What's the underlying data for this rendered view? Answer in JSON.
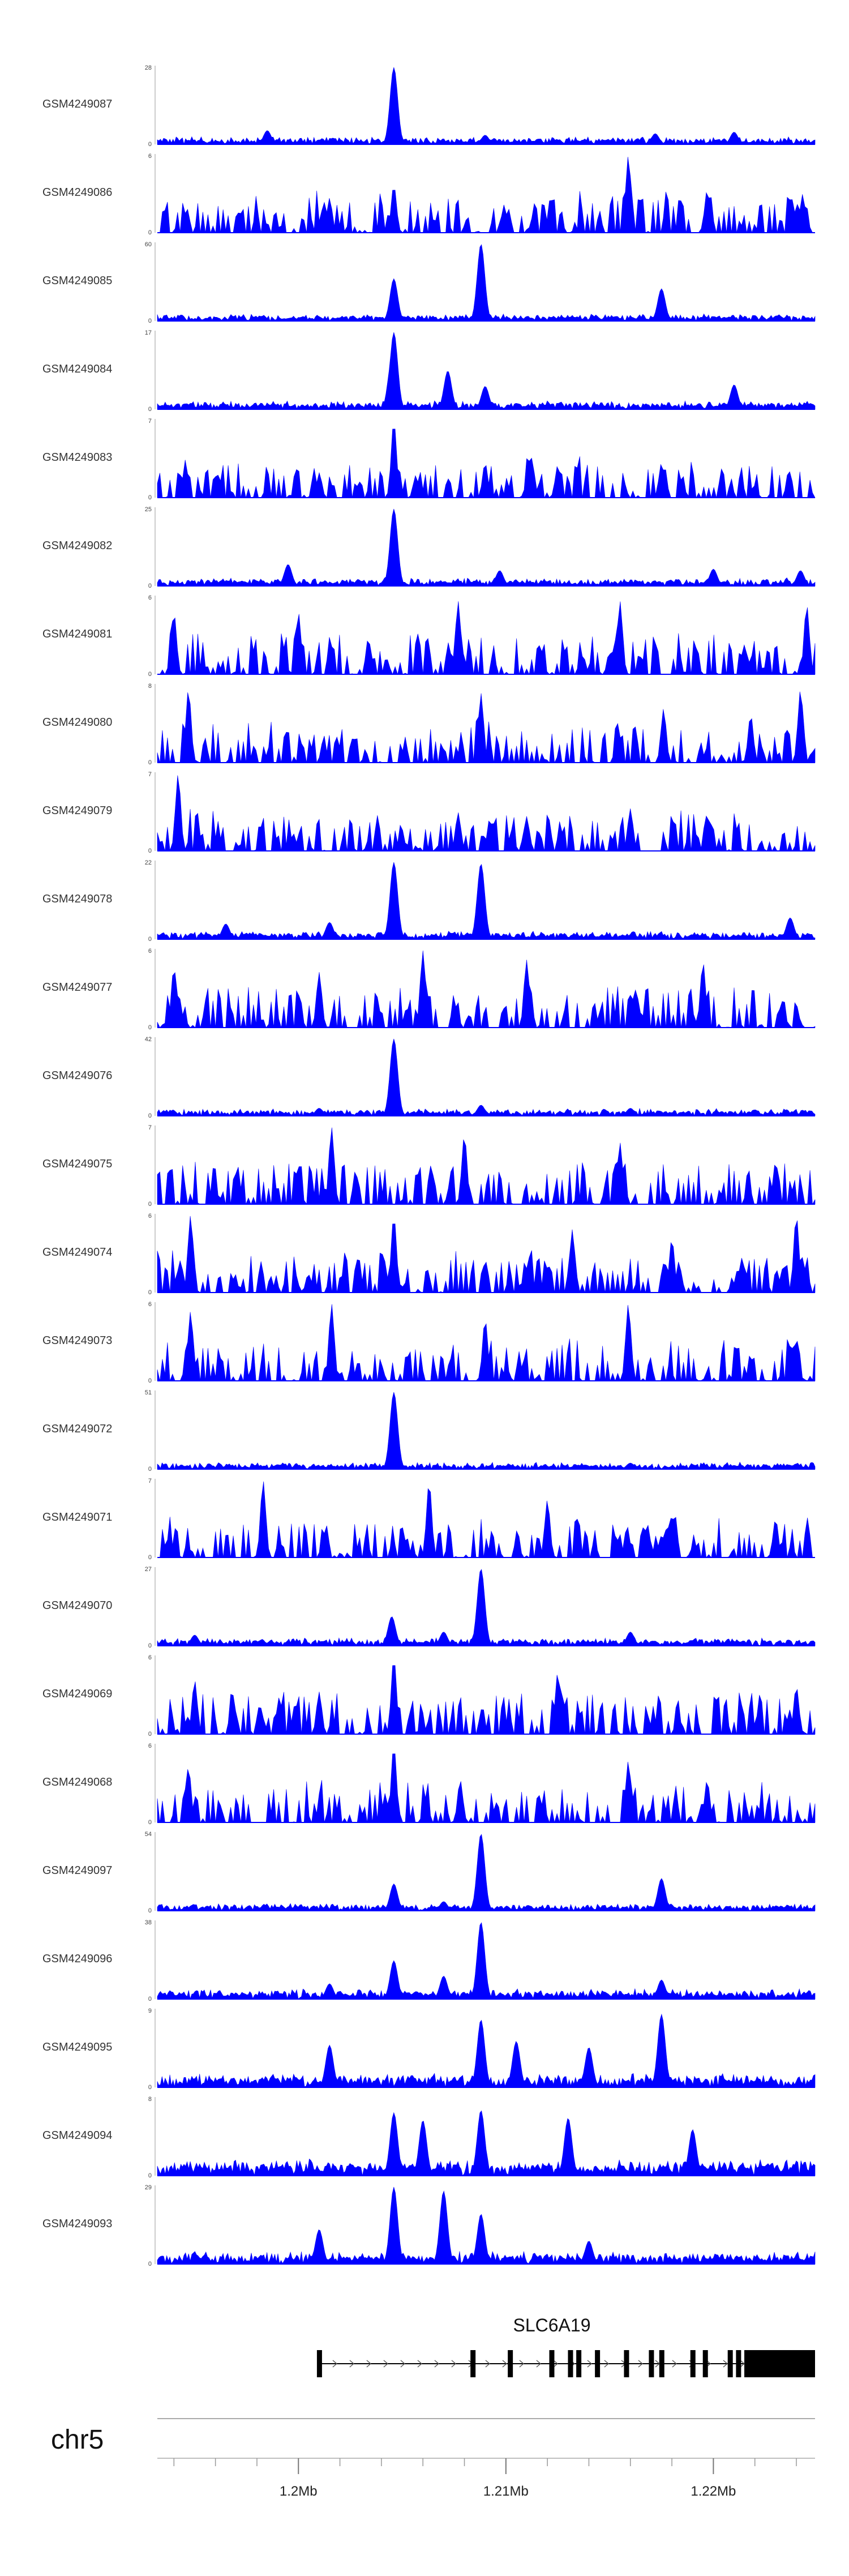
{
  "chart_data": {
    "type": "area",
    "xlim_mb": [
      1.1932,
      1.2249
    ],
    "fill_color": "#0000ff",
    "y_min_label": "0",
    "grid": false,
    "legend": "none",
    "tracks": [
      {
        "name": "GSM4249087",
        "ymax": "28",
        "peaks": [
          [
            1.2046,
            1.0
          ],
          [
            1.209,
            0.12
          ],
          [
            1.2172,
            0.14
          ],
          [
            1.1985,
            0.18
          ],
          [
            1.221,
            0.16
          ]
        ],
        "density": 0.06,
        "style": "smooth"
      },
      {
        "name": "GSM4249086",
        "ymax": "6",
        "peaks": [
          [
            1.2046,
            0.62
          ],
          [
            1.2015,
            0.45
          ],
          [
            1.2159,
            1.0
          ],
          [
            1.2197,
            0.55
          ],
          [
            1.2243,
            0.5
          ]
        ],
        "density": 0.3,
        "style": "spiky"
      },
      {
        "name": "GSM4249085",
        "ymax": "60",
        "peaks": [
          [
            1.2046,
            0.55
          ],
          [
            1.2088,
            1.0
          ],
          [
            1.2175,
            0.42
          ],
          [
            1.201,
            0.05
          ],
          [
            1.213,
            0.05
          ]
        ],
        "density": 0.03,
        "style": "smooth"
      },
      {
        "name": "GSM4249084",
        "ymax": "17",
        "peaks": [
          [
            1.2046,
            1.0
          ],
          [
            1.2072,
            0.5
          ],
          [
            1.209,
            0.3
          ],
          [
            1.221,
            0.32
          ],
          [
            1.2045,
            0.65
          ]
        ],
        "density": 0.1,
        "style": "smooth"
      },
      {
        "name": "GSM4249083",
        "ymax": "7",
        "peaks": [
          [
            1.2046,
            1.0
          ],
          [
            1.201,
            0.3
          ],
          [
            1.209,
            0.45
          ],
          [
            1.2125,
            0.42
          ],
          [
            1.2175,
            0.45
          ]
        ],
        "density": 0.22,
        "style": "spiky"
      },
      {
        "name": "GSM4249082",
        "ymax": "25",
        "peaks": [
          [
            1.2046,
            1.0
          ],
          [
            1.1995,
            0.28
          ],
          [
            1.2097,
            0.2
          ],
          [
            1.22,
            0.22
          ],
          [
            1.2242,
            0.2
          ]
        ],
        "density": 0.08,
        "style": "smooth"
      },
      {
        "name": "GSM4249081",
        "ymax": "6",
        "peaks": [
          [
            1.194,
            0.8
          ],
          [
            1.2,
            0.8
          ],
          [
            1.2077,
            0.95
          ],
          [
            1.2155,
            0.95
          ],
          [
            1.2245,
            0.9
          ]
        ],
        "density": 0.55,
        "style": "spiky"
      },
      {
        "name": "GSM4249080",
        "ymax": "8",
        "peaks": [
          [
            1.1947,
            0.95
          ],
          [
            1.2088,
            0.9
          ],
          [
            1.2176,
            0.7
          ],
          [
            1.2218,
            0.62
          ],
          [
            1.2242,
            0.95
          ]
        ],
        "density": 0.3,
        "style": "spiky"
      },
      {
        "name": "GSM4249079",
        "ymax": "7",
        "peaks": [
          [
            1.1942,
            1.0
          ],
          [
            1.2077,
            0.5
          ],
          [
            1.216,
            0.55
          ],
          [
            1.2197,
            0.48
          ],
          [
            1.211,
            0.45
          ]
        ],
        "density": 0.2,
        "style": "spiky"
      },
      {
        "name": "GSM4249078",
        "ymax": "22",
        "peaks": [
          [
            1.2046,
            1.0
          ],
          [
            1.2088,
            0.98
          ],
          [
            1.1965,
            0.2
          ],
          [
            1.2237,
            0.28
          ],
          [
            1.2015,
            0.22
          ]
        ],
        "density": 0.1,
        "style": "smooth"
      },
      {
        "name": "GSM4249077",
        "ymax": "6",
        "peaks": [
          [
            1.206,
            1.0
          ],
          [
            1.211,
            0.88
          ],
          [
            1.2195,
            0.85
          ],
          [
            1.194,
            0.78
          ],
          [
            1.201,
            0.72
          ]
        ],
        "density": 0.5,
        "style": "spiky"
      },
      {
        "name": "GSM4249076",
        "ymax": "42",
        "peaks": [
          [
            1.2046,
            1.0
          ],
          [
            1.2088,
            0.14
          ],
          [
            1.201,
            0.1
          ],
          [
            1.216,
            0.1
          ],
          [
            1.222,
            0.08
          ]
        ],
        "density": 0.05,
        "style": "smooth"
      },
      {
        "name": "GSM4249075",
        "ymax": "7",
        "peaks": [
          [
            1.2016,
            1.0
          ],
          [
            1.208,
            0.9
          ],
          [
            1.2155,
            0.8
          ],
          [
            1.223,
            0.55
          ],
          [
            1.2,
            0.5
          ]
        ],
        "density": 0.48,
        "style": "spiky"
      },
      {
        "name": "GSM4249074",
        "ymax": "6",
        "peaks": [
          [
            1.1948,
            1.0
          ],
          [
            1.2046,
            1.0
          ],
          [
            1.224,
            1.0
          ],
          [
            1.2132,
            0.82
          ],
          [
            1.218,
            0.7
          ]
        ],
        "density": 0.3,
        "style": "spiky"
      },
      {
        "name": "GSM4249073",
        "ymax": "6",
        "peaks": [
          [
            1.2016,
            1.0
          ],
          [
            1.2159,
            1.0
          ],
          [
            1.1948,
            0.9
          ],
          [
            1.209,
            0.8
          ],
          [
            1.224,
            0.55
          ]
        ],
        "density": 0.35,
        "style": "spiky"
      },
      {
        "name": "GSM4249072",
        "ymax": "51",
        "peaks": [
          [
            1.2046,
            1.0
          ],
          [
            1.216,
            0.08
          ],
          [
            1.221,
            0.05
          ],
          [
            1.224,
            0.07
          ],
          [
            1.199,
            0.06
          ]
        ],
        "density": 0.03,
        "style": "smooth"
      },
      {
        "name": "GSM4249071",
        "ymax": "7",
        "peaks": [
          [
            1.1983,
            1.0
          ],
          [
            1.2063,
            0.98
          ],
          [
            1.212,
            0.75
          ],
          [
            1.218,
            0.55
          ],
          [
            1.223,
            0.5
          ]
        ],
        "density": 0.28,
        "style": "spiky"
      },
      {
        "name": "GSM4249070",
        "ymax": "27",
        "peaks": [
          [
            1.2088,
            1.0
          ],
          [
            1.2045,
            0.38
          ],
          [
            1.207,
            0.18
          ],
          [
            1.216,
            0.18
          ],
          [
            1.195,
            0.14
          ]
        ],
        "density": 0.08,
        "style": "smooth"
      },
      {
        "name": "GSM4249069",
        "ymax": "6",
        "peaks": [
          [
            1.2046,
            1.0
          ],
          [
            1.195,
            0.7
          ],
          [
            1.2125,
            0.8
          ],
          [
            1.224,
            0.62
          ],
          [
            1.201,
            0.55
          ]
        ],
        "density": 0.45,
        "style": "spiky"
      },
      {
        "name": "GSM4249068",
        "ymax": "6",
        "peaks": [
          [
            1.2046,
            1.0
          ],
          [
            1.1947,
            0.72
          ],
          [
            1.2078,
            0.55
          ],
          [
            1.2159,
            0.8
          ],
          [
            1.2197,
            0.55
          ]
        ],
        "density": 0.3,
        "style": "spiky"
      },
      {
        "name": "GSM4249097",
        "ymax": "54",
        "peaks": [
          [
            1.2088,
            1.0
          ],
          [
            1.2046,
            0.35
          ],
          [
            1.2175,
            0.42
          ],
          [
            1.207,
            0.12
          ],
          [
            1.199,
            0.05
          ]
        ],
        "density": 0.04,
        "style": "smooth"
      },
      {
        "name": "GSM4249096",
        "ymax": "38",
        "peaks": [
          [
            1.2088,
            1.0
          ],
          [
            1.2046,
            0.5
          ],
          [
            1.207,
            0.3
          ],
          [
            1.2015,
            0.2
          ],
          [
            1.2175,
            0.25
          ]
        ],
        "density": 0.18,
        "style": "smooth"
      },
      {
        "name": "GSM4249095",
        "ymax": "9",
        "peaks": [
          [
            1.2088,
            0.88
          ],
          [
            1.2175,
            0.95
          ],
          [
            1.2015,
            0.55
          ],
          [
            1.2105,
            0.6
          ],
          [
            1.214,
            0.52
          ]
        ],
        "density": 0.35,
        "style": "smooth"
      },
      {
        "name": "GSM4249094",
        "ymax": "8",
        "peaks": [
          [
            1.2046,
            0.82
          ],
          [
            1.2088,
            0.85
          ],
          [
            1.213,
            0.75
          ],
          [
            1.206,
            0.72
          ],
          [
            1.219,
            0.6
          ]
        ],
        "density": 0.45,
        "style": "smooth"
      },
      {
        "name": "GSM4249093",
        "ymax": "29",
        "peaks": [
          [
            1.2046,
            1.0
          ],
          [
            1.207,
            0.95
          ],
          [
            1.2088,
            0.65
          ],
          [
            1.201,
            0.45
          ],
          [
            1.214,
            0.3
          ]
        ],
        "density": 0.28,
        "style": "smooth"
      }
    ],
    "gene": {
      "label": "SLC6A19",
      "start_mb": 1.201,
      "end_mb": 1.2249,
      "exons_mb": [
        1.201,
        1.2084,
        1.2102,
        1.2122,
        1.2131,
        1.2135,
        1.2144,
        1.2158,
        1.217,
        1.2175,
        1.219,
        1.2196,
        1.2208,
        1.2212,
        1.2216,
        1.222
      ],
      "utr_start_mb": 1.2217
    },
    "axis": {
      "chromosome": "chr5",
      "ticks": [
        {
          "pos_mb": 1.2,
          "label": "1.2Mb"
        },
        {
          "pos_mb": 1.21,
          "label": "1.21Mb"
        },
        {
          "pos_mb": 1.22,
          "label": "1.22Mb"
        }
      ],
      "minor_step_mb": 0.002
    }
  }
}
